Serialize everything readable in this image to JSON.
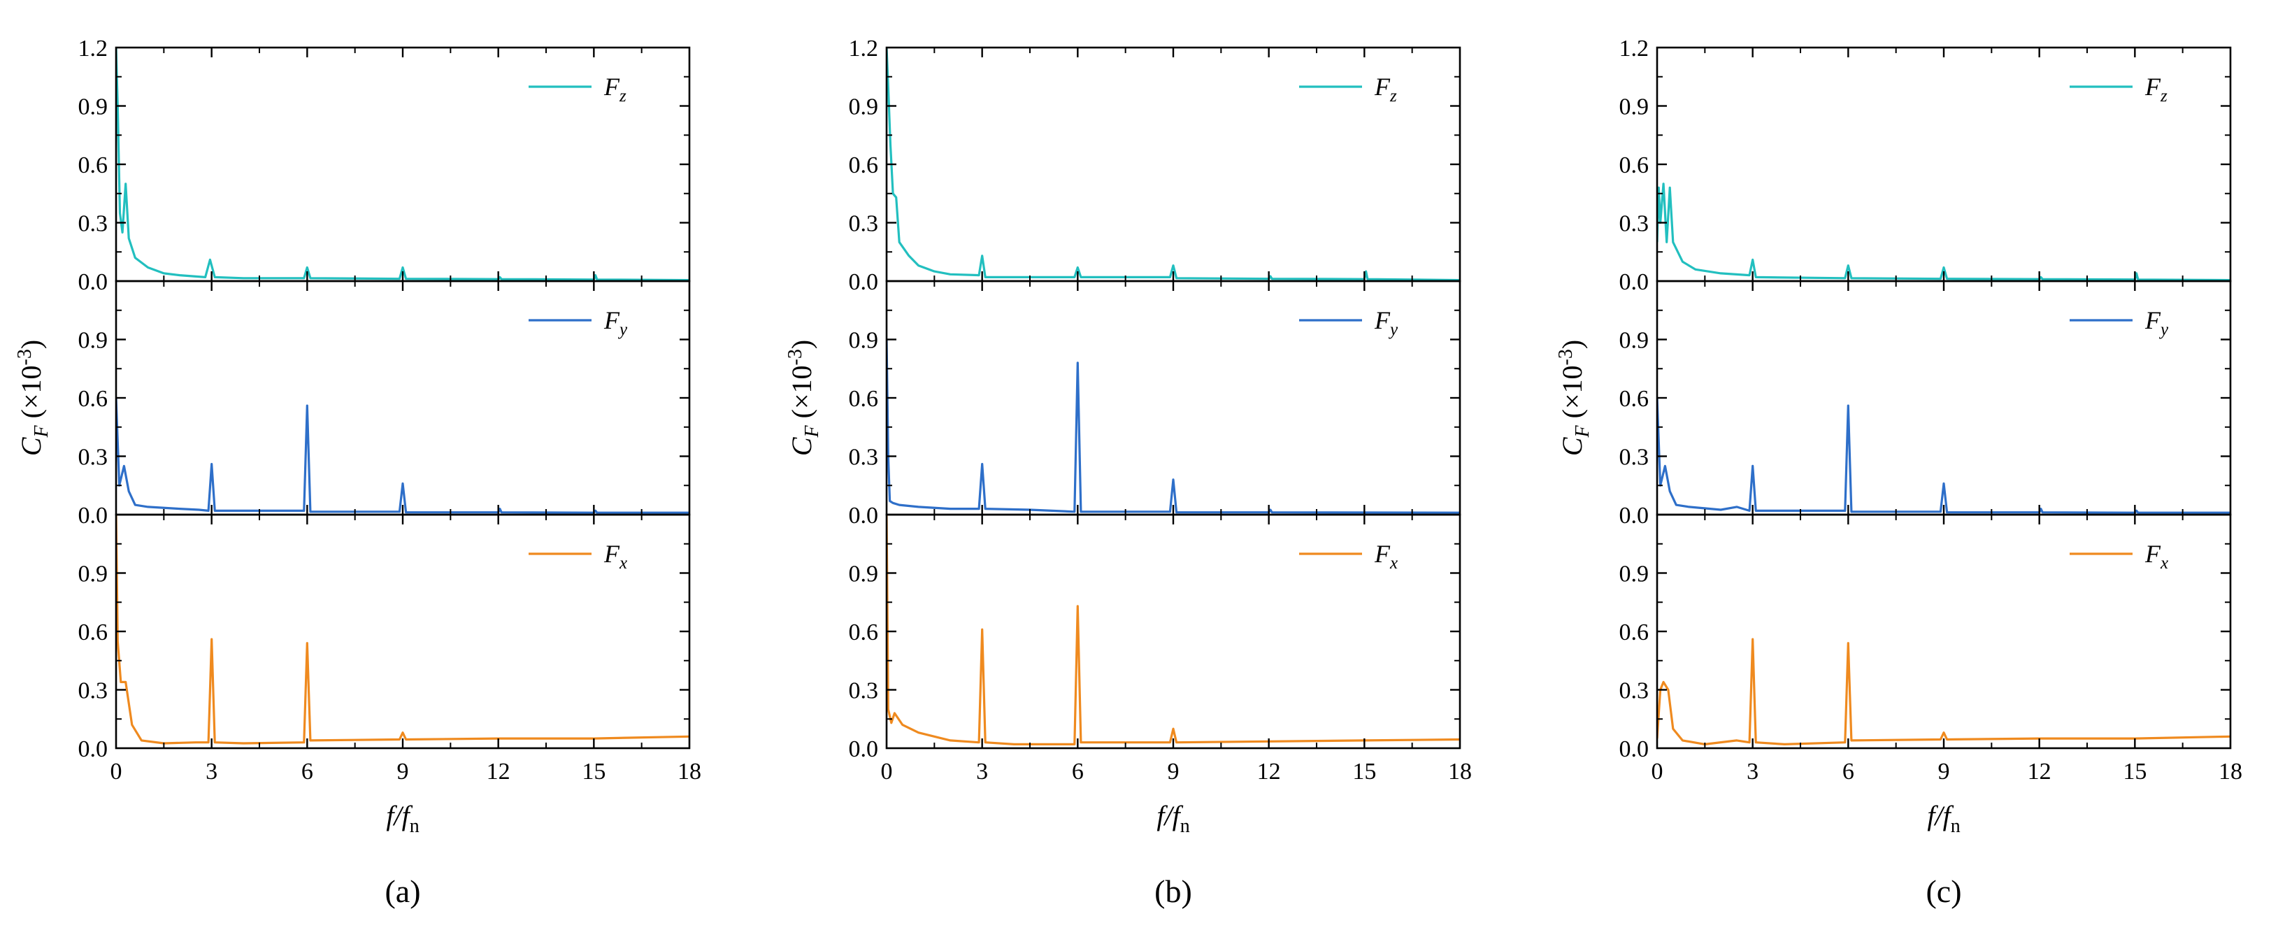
{
  "figure": {
    "y_axis_label": {
      "base": "C",
      "sub": "F",
      "text": " (×10",
      "exp": "-3",
      "close": ")"
    },
    "x_axis_label": {
      "base": "f",
      "slash": "/",
      "base2": "f",
      "sub": "n"
    },
    "colors": {
      "Fz": "#22bfbf",
      "Fy": "#2e6fc9",
      "Fx": "#ef8a1f"
    }
  },
  "chart_data": [
    {
      "type": "line",
      "caption": "(a)",
      "xlabel": "f/fn",
      "ylabel": "CF (×10-3)",
      "xlim": [
        0,
        18
      ],
      "ylim": [
        0,
        1.2
      ],
      "x_ticks": [
        "0",
        "3",
        "6",
        "9",
        "12",
        "15",
        "18"
      ],
      "y_ticks_top": [
        "0.0",
        "0.3",
        "0.6",
        "0.9",
        "1.2"
      ],
      "y_ticks": [
        "0.0",
        "0.3",
        "0.6",
        "0.9"
      ],
      "panels": [
        {
          "name": "Fz",
          "legend": {
            "base": "F",
            "sub": "z"
          },
          "color": "#22bfbf",
          "points": [
            [
              0,
              1.2
            ],
            [
              0.05,
              0.9
            ],
            [
              0.12,
              0.35
            ],
            [
              0.2,
              0.25
            ],
            [
              0.3,
              0.5
            ],
            [
              0.4,
              0.22
            ],
            [
              0.6,
              0.12
            ],
            [
              1,
              0.07
            ],
            [
              1.5,
              0.04
            ],
            [
              2,
              0.03
            ],
            [
              2.8,
              0.02
            ],
            [
              2.95,
              0.11
            ],
            [
              3.1,
              0.02
            ],
            [
              4,
              0.015
            ],
            [
              5.9,
              0.015
            ],
            [
              6,
              0.07
            ],
            [
              6.1,
              0.015
            ],
            [
              8.9,
              0.012
            ],
            [
              9,
              0.07
            ],
            [
              9.1,
              0.012
            ],
            [
              12,
              0.01
            ],
            [
              12.05,
              0.02
            ],
            [
              12.1,
              0.01
            ],
            [
              15,
              0.008
            ],
            [
              15.05,
              0.03
            ],
            [
              15.1,
              0.008
            ],
            [
              18,
              0.005
            ]
          ]
        },
        {
          "name": "Fy",
          "legend": {
            "base": "F",
            "sub": "y"
          },
          "color": "#2e6fc9",
          "points": [
            [
              0,
              0.6
            ],
            [
              0.1,
              0.15
            ],
            [
              0.25,
              0.25
            ],
            [
              0.4,
              0.12
            ],
            [
              0.6,
              0.05
            ],
            [
              1,
              0.04
            ],
            [
              2,
              0.03
            ],
            [
              2.6,
              0.025
            ],
            [
              2.9,
              0.02
            ],
            [
              3,
              0.26
            ],
            [
              3.1,
              0.02
            ],
            [
              5.9,
              0.02
            ],
            [
              6,
              0.56
            ],
            [
              6.1,
              0.015
            ],
            [
              8.9,
              0.015
            ],
            [
              9,
              0.16
            ],
            [
              9.1,
              0.012
            ],
            [
              12,
              0.012
            ],
            [
              12.05,
              0.03
            ],
            [
              12.1,
              0.012
            ],
            [
              15,
              0.01
            ],
            [
              15.05,
              0.02
            ],
            [
              15.1,
              0.01
            ],
            [
              18,
              0.01
            ]
          ]
        },
        {
          "name": "Fx",
          "legend": {
            "base": "F",
            "sub": "x"
          },
          "color": "#ef8a1f",
          "points": [
            [
              0,
              1.2
            ],
            [
              0.05,
              0.55
            ],
            [
              0.15,
              0.34
            ],
            [
              0.3,
              0.34
            ],
            [
              0.5,
              0.12
            ],
            [
              0.8,
              0.04
            ],
            [
              1.5,
              0.025
            ],
            [
              2.5,
              0.03
            ],
            [
              2.9,
              0.03
            ],
            [
              3,
              0.56
            ],
            [
              3.1,
              0.03
            ],
            [
              4,
              0.025
            ],
            [
              5.9,
              0.03
            ],
            [
              6,
              0.54
            ],
            [
              6.1,
              0.04
            ],
            [
              8.9,
              0.045
            ],
            [
              9,
              0.08
            ],
            [
              9.1,
              0.045
            ],
            [
              12,
              0.05
            ],
            [
              15,
              0.05
            ],
            [
              18,
              0.06
            ]
          ]
        }
      ]
    },
    {
      "type": "line",
      "caption": "(b)",
      "xlabel": "f/fn",
      "ylabel": "CF (×10-3)",
      "xlim": [
        0,
        18
      ],
      "ylim": [
        0,
        1.2
      ],
      "x_ticks": [
        "0",
        "3",
        "6",
        "9",
        "12",
        "15",
        "18"
      ],
      "y_ticks_top": [
        "0.0",
        "0.3",
        "0.6",
        "0.9",
        "1.2"
      ],
      "y_ticks": [
        "0.0",
        "0.3",
        "0.6",
        "0.9"
      ],
      "panels": [
        {
          "name": "Fz",
          "legend": {
            "base": "F",
            "sub": "z"
          },
          "color": "#22bfbf",
          "points": [
            [
              0,
              1.2
            ],
            [
              0.05,
              1.0
            ],
            [
              0.12,
              0.7
            ],
            [
              0.2,
              0.45
            ],
            [
              0.3,
              0.43
            ],
            [
              0.4,
              0.2
            ],
            [
              0.7,
              0.13
            ],
            [
              1,
              0.08
            ],
            [
              1.5,
              0.05
            ],
            [
              2,
              0.035
            ],
            [
              2.9,
              0.03
            ],
            [
              3,
              0.13
            ],
            [
              3.1,
              0.02
            ],
            [
              5.9,
              0.02
            ],
            [
              6,
              0.07
            ],
            [
              6.1,
              0.02
            ],
            [
              8.9,
              0.02
            ],
            [
              9,
              0.08
            ],
            [
              9.1,
              0.015
            ],
            [
              12,
              0.012
            ],
            [
              12.05,
              0.025
            ],
            [
              12.1,
              0.012
            ],
            [
              15,
              0.01
            ],
            [
              15.05,
              0.05
            ],
            [
              15.1,
              0.01
            ],
            [
              18,
              0.005
            ]
          ]
        },
        {
          "name": "Fy",
          "legend": {
            "base": "F",
            "sub": "y"
          },
          "color": "#2e6fc9",
          "points": [
            [
              0,
              0.9
            ],
            [
              0.05,
              0.3
            ],
            [
              0.1,
              0.07
            ],
            [
              0.2,
              0.06
            ],
            [
              0.4,
              0.05
            ],
            [
              1,
              0.04
            ],
            [
              2,
              0.03
            ],
            [
              2.9,
              0.03
            ],
            [
              3,
              0.26
            ],
            [
              3.1,
              0.03
            ],
            [
              4.5,
              0.025
            ],
            [
              5.9,
              0.015
            ],
            [
              6,
              0.78
            ],
            [
              6.1,
              0.015
            ],
            [
              8.9,
              0.015
            ],
            [
              9,
              0.18
            ],
            [
              9.1,
              0.012
            ],
            [
              12,
              0.012
            ],
            [
              12.05,
              0.025
            ],
            [
              12.1,
              0.012
            ],
            [
              18,
              0.01
            ]
          ]
        },
        {
          "name": "Fx",
          "legend": {
            "base": "F",
            "sub": "x"
          },
          "color": "#ef8a1f",
          "points": [
            [
              0,
              1.2
            ],
            [
              0.05,
              0.2
            ],
            [
              0.15,
              0.13
            ],
            [
              0.25,
              0.18
            ],
            [
              0.5,
              0.12
            ],
            [
              1,
              0.08
            ],
            [
              1.5,
              0.06
            ],
            [
              2,
              0.04
            ],
            [
              2.9,
              0.03
            ],
            [
              3,
              0.61
            ],
            [
              3.1,
              0.03
            ],
            [
              4,
              0.02
            ],
            [
              5,
              0.02
            ],
            [
              5.9,
              0.02
            ],
            [
              6,
              0.73
            ],
            [
              6.1,
              0.03
            ],
            [
              8.9,
              0.03
            ],
            [
              9,
              0.1
            ],
            [
              9.1,
              0.03
            ],
            [
              12,
              0.035
            ],
            [
              15,
              0.04
            ],
            [
              18,
              0.045
            ]
          ]
        }
      ]
    },
    {
      "type": "line",
      "caption": "(c)",
      "xlabel": "f/fn",
      "ylabel": "CF (×10-3)",
      "xlim": [
        0,
        18
      ],
      "ylim": [
        0,
        1.2
      ],
      "x_ticks": [
        "0",
        "3",
        "6",
        "9",
        "12",
        "15",
        "18"
      ],
      "y_ticks_top": [
        "0.0",
        "0.3",
        "0.6",
        "0.9",
        "1.2"
      ],
      "y_ticks": [
        "0.0",
        "0.3",
        "0.6",
        "0.9"
      ],
      "panels": [
        {
          "name": "Fz",
          "legend": {
            "base": "F",
            "sub": "z"
          },
          "color": "#22bfbf",
          "points": [
            [
              0,
              0.2
            ],
            [
              0.05,
              0.48
            ],
            [
              0.1,
              0.3
            ],
            [
              0.2,
              0.5
            ],
            [
              0.3,
              0.2
            ],
            [
              0.4,
              0.48
            ],
            [
              0.5,
              0.2
            ],
            [
              0.8,
              0.1
            ],
            [
              1.2,
              0.06
            ],
            [
              2,
              0.04
            ],
            [
              2.9,
              0.03
            ],
            [
              3,
              0.11
            ],
            [
              3.1,
              0.02
            ],
            [
              5.9,
              0.015
            ],
            [
              6,
              0.08
            ],
            [
              6.1,
              0.015
            ],
            [
              8.9,
              0.012
            ],
            [
              9,
              0.07
            ],
            [
              9.1,
              0.012
            ],
            [
              12,
              0.01
            ],
            [
              12.05,
              0.02
            ],
            [
              12.1,
              0.01
            ],
            [
              15,
              0.008
            ],
            [
              15.05,
              0.04
            ],
            [
              15.1,
              0.008
            ],
            [
              18,
              0.005
            ]
          ]
        },
        {
          "name": "Fy",
          "legend": {
            "base": "F",
            "sub": "y"
          },
          "color": "#2e6fc9",
          "points": [
            [
              0,
              0.6
            ],
            [
              0.1,
              0.15
            ],
            [
              0.25,
              0.25
            ],
            [
              0.4,
              0.12
            ],
            [
              0.6,
              0.05
            ],
            [
              1,
              0.04
            ],
            [
              2,
              0.025
            ],
            [
              2.5,
              0.04
            ],
            [
              2.9,
              0.02
            ],
            [
              3,
              0.25
            ],
            [
              3.1,
              0.02
            ],
            [
              5.9,
              0.02
            ],
            [
              6,
              0.56
            ],
            [
              6.1,
              0.015
            ],
            [
              8.9,
              0.015
            ],
            [
              9,
              0.16
            ],
            [
              9.1,
              0.012
            ],
            [
              12,
              0.012
            ],
            [
              12.05,
              0.03
            ],
            [
              12.1,
              0.012
            ],
            [
              15,
              0.01
            ],
            [
              15.05,
              0.02
            ],
            [
              15.1,
              0.01
            ],
            [
              18,
              0.01
            ]
          ]
        },
        {
          "name": "Fx",
          "legend": {
            "base": "F",
            "sub": "x"
          },
          "color": "#ef8a1f",
          "points": [
            [
              0,
              0.05
            ],
            [
              0.1,
              0.3
            ],
            [
              0.2,
              0.34
            ],
            [
              0.35,
              0.3
            ],
            [
              0.5,
              0.1
            ],
            [
              0.8,
              0.04
            ],
            [
              1.5,
              0.02
            ],
            [
              2.5,
              0.04
            ],
            [
              2.9,
              0.03
            ],
            [
              3,
              0.56
            ],
            [
              3.1,
              0.03
            ],
            [
              4,
              0.02
            ],
            [
              5.9,
              0.03
            ],
            [
              6,
              0.54
            ],
            [
              6.1,
              0.04
            ],
            [
              8.9,
              0.045
            ],
            [
              9,
              0.08
            ],
            [
              9.1,
              0.045
            ],
            [
              12,
              0.05
            ],
            [
              15,
              0.05
            ],
            [
              18,
              0.06
            ]
          ]
        }
      ]
    }
  ]
}
